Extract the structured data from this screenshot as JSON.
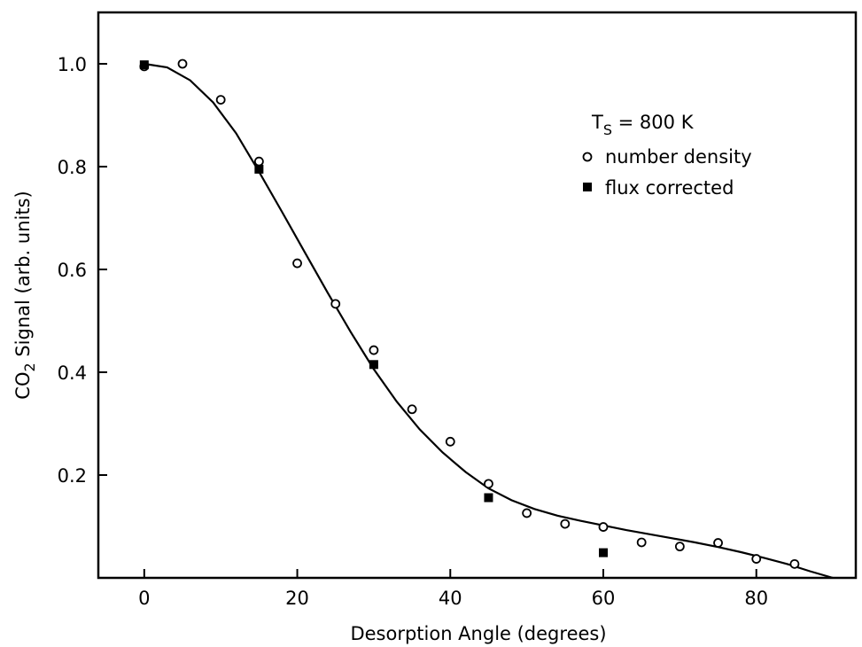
{
  "chart_data": {
    "type": "scatter",
    "title": "",
    "xlabel": "Desorption Angle  (degrees)",
    "ylabel_parts": {
      "before": "CO",
      "subscript": "2",
      "after": " Signal  (arb. units)"
    },
    "xlim": [
      -6,
      93
    ],
    "ylim": [
      0,
      1.1
    ],
    "xticks": [
      0,
      20,
      40,
      60,
      80
    ],
    "yticks": [
      0.2,
      0.4,
      0.6,
      0.8,
      1.0
    ],
    "xtick_labels": [
      "0",
      "20",
      "40",
      "60",
      "80"
    ],
    "ytick_labels": [
      "0.2",
      "0.4",
      "0.6",
      "0.8",
      "1.0"
    ],
    "grid": false,
    "legend": {
      "placement": "top-right",
      "title_parts": {
        "before": "T",
        "subscript": "S",
        "after": " = 800 K"
      }
    },
    "series": [
      {
        "name": "number density",
        "marker": "open-circle",
        "points": [
          [
            0,
            0.995
          ],
          [
            5,
            1.0
          ],
          [
            10,
            0.93
          ],
          [
            15,
            0.81
          ],
          [
            20,
            0.612
          ],
          [
            25,
            0.533
          ],
          [
            30,
            0.443
          ],
          [
            35,
            0.328
          ],
          [
            40,
            0.265
          ],
          [
            45,
            0.183
          ],
          [
            50,
            0.126
          ],
          [
            55,
            0.105
          ],
          [
            60,
            0.099
          ],
          [
            65,
            0.069
          ],
          [
            70,
            0.061
          ],
          [
            75,
            0.068
          ],
          [
            80,
            0.037
          ],
          [
            85,
            0.027
          ]
        ]
      },
      {
        "name": "flux corrected",
        "marker": "filled-square",
        "points": [
          [
            0,
            0.998
          ],
          [
            15,
            0.795
          ],
          [
            30,
            0.415
          ],
          [
            45,
            0.156
          ],
          [
            60,
            0.049
          ]
        ]
      }
    ],
    "fit_curve": {
      "points": [
        [
          0,
          1.0
        ],
        [
          3,
          0.993
        ],
        [
          6,
          0.968
        ],
        [
          9,
          0.925
        ],
        [
          12,
          0.865
        ],
        [
          15,
          0.79
        ],
        [
          18,
          0.712
        ],
        [
          21,
          0.633
        ],
        [
          24,
          0.554
        ],
        [
          27,
          0.478
        ],
        [
          30,
          0.406
        ],
        [
          33,
          0.343
        ],
        [
          36,
          0.289
        ],
        [
          39,
          0.244
        ],
        [
          42,
          0.206
        ],
        [
          45,
          0.174
        ],
        [
          48,
          0.151
        ],
        [
          51,
          0.134
        ],
        [
          54,
          0.121
        ],
        [
          57,
          0.111
        ],
        [
          60,
          0.102
        ],
        [
          63,
          0.093
        ],
        [
          66,
          0.085
        ],
        [
          69,
          0.077
        ],
        [
          72,
          0.069
        ],
        [
          75,
          0.06
        ],
        [
          78,
          0.05
        ],
        [
          81,
          0.039
        ],
        [
          84,
          0.027
        ],
        [
          87,
          0.013
        ],
        [
          90,
          0.0
        ]
      ]
    }
  }
}
